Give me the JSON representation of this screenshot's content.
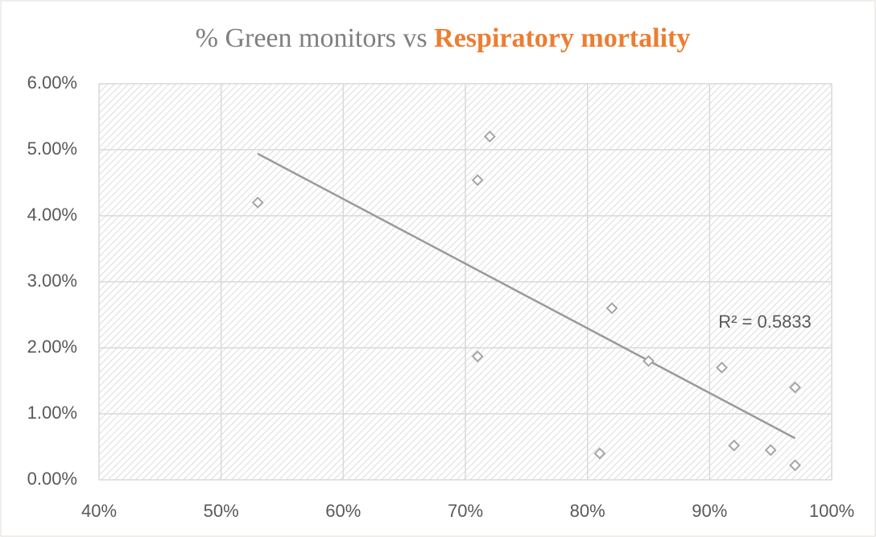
{
  "chart_data": {
    "type": "scatter",
    "title": [
      "% Green monitors vs",
      "Respiratory mortality"
    ],
    "title_colors": [
      "#7f7f7f",
      "#ed7d31"
    ],
    "x": [
      53,
      71,
      72,
      71,
      81,
      82,
      85,
      91,
      92,
      95,
      97,
      97
    ],
    "values": [
      4.2,
      4.54,
      5.2,
      1.87,
      0.4,
      2.6,
      1.8,
      1.7,
      0.52,
      0.45,
      1.4,
      0.22
    ],
    "color": "#a5a5a5",
    "trendline": {
      "x": [
        53,
        97
      ],
      "values": [
        4.94,
        0.63
      ],
      "color": "#9a9a9a"
    },
    "annotation": "R² = 0.5833",
    "xlim": [
      40,
      100
    ],
    "xticks": [
      {
        "value": 40,
        "label": "40%"
      },
      {
        "value": 50,
        "label": "50%"
      },
      {
        "value": 60,
        "label": "60%"
      },
      {
        "value": 70,
        "label": "70%"
      },
      {
        "value": 80,
        "label": "80%"
      },
      {
        "value": 90,
        "label": "90%"
      },
      {
        "value": 100,
        "label": "100%"
      }
    ],
    "ylim": [
      0,
      6
    ],
    "yticks": [
      {
        "value": 0,
        "label": "0.00%"
      },
      {
        "value": 1,
        "label": "1.00%"
      },
      {
        "value": 2,
        "label": "2.00%"
      },
      {
        "value": 3,
        "label": "3.00%"
      },
      {
        "value": 4,
        "label": "4.00%"
      },
      {
        "value": 5,
        "label": "5.00%"
      },
      {
        "value": 6,
        "label": "6.00%"
      }
    ],
    "grid": true
  }
}
